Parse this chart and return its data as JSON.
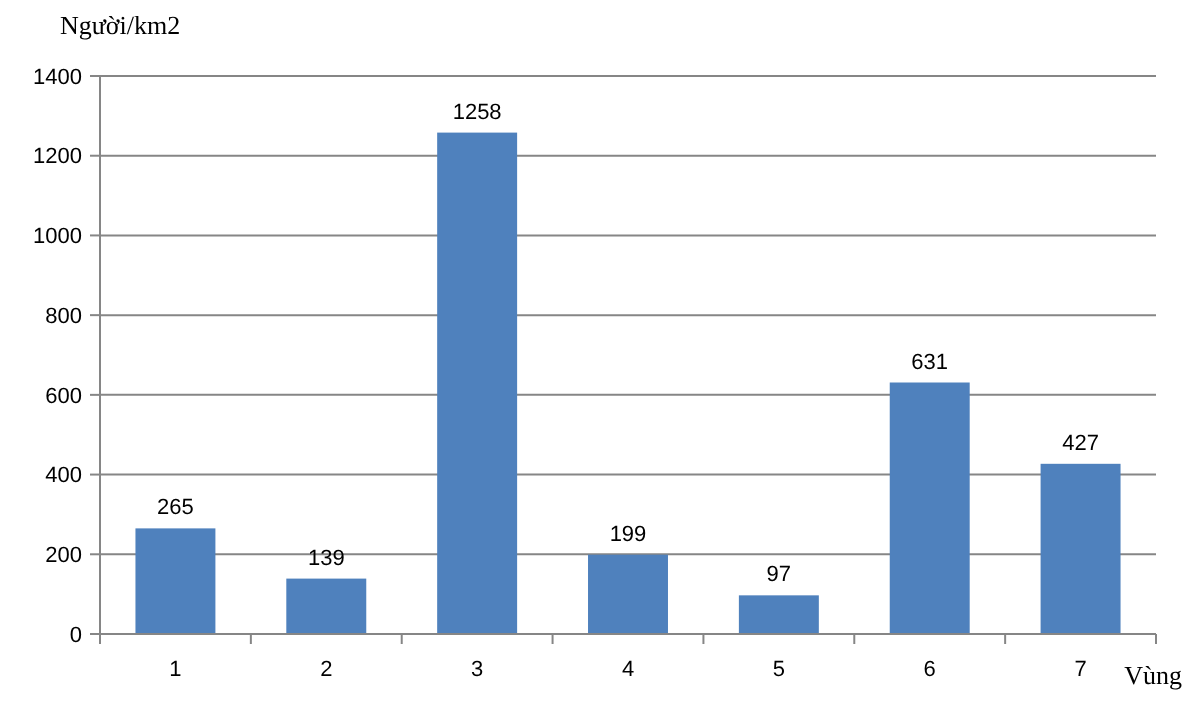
{
  "chart_data": {
    "type": "bar",
    "ylabel": "Người/km2",
    "xlabel": "Vùng",
    "categories": [
      "1",
      "2",
      "3",
      "4",
      "5",
      "6",
      "7"
    ],
    "values": [
      265,
      139,
      1258,
      199,
      97,
      631,
      427
    ],
    "color": "#4f81bd",
    "ylim": [
      0,
      1400
    ],
    "yticks": [
      0,
      200,
      400,
      600,
      800,
      1000,
      1200,
      1400
    ],
    "grid": "y",
    "data_labels": true
  }
}
